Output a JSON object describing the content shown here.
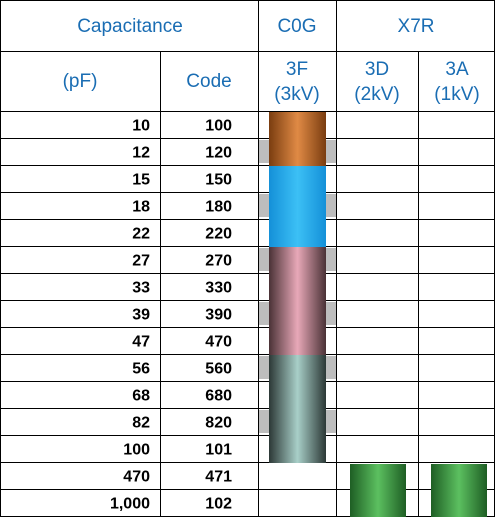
{
  "header": {
    "capacitance": "Capacitance",
    "c0g": "C0G",
    "x7r": "X7R",
    "pf": "(pF)",
    "code": "Code",
    "col_3f": {
      "name": "3F",
      "voltage": "(3kV)"
    },
    "col_3d": {
      "name": "3D",
      "voltage": "(2kV)"
    },
    "col_3a": {
      "name": "3A",
      "voltage": "(1kV)"
    }
  },
  "table": {
    "rows": [
      [
        "10",
        "100"
      ],
      [
        "12",
        "120"
      ],
      [
        "15",
        "150"
      ],
      [
        "18",
        "180"
      ],
      [
        "22",
        "220"
      ],
      [
        "27",
        "270"
      ],
      [
        "33",
        "330"
      ],
      [
        "39",
        "390"
      ],
      [
        "47",
        "470"
      ],
      [
        "56",
        "560"
      ],
      [
        "68",
        "680"
      ],
      [
        "82",
        "820"
      ],
      [
        "100",
        "101"
      ],
      [
        "470",
        "471"
      ],
      [
        "1,000",
        "102"
      ]
    ]
  }
}
